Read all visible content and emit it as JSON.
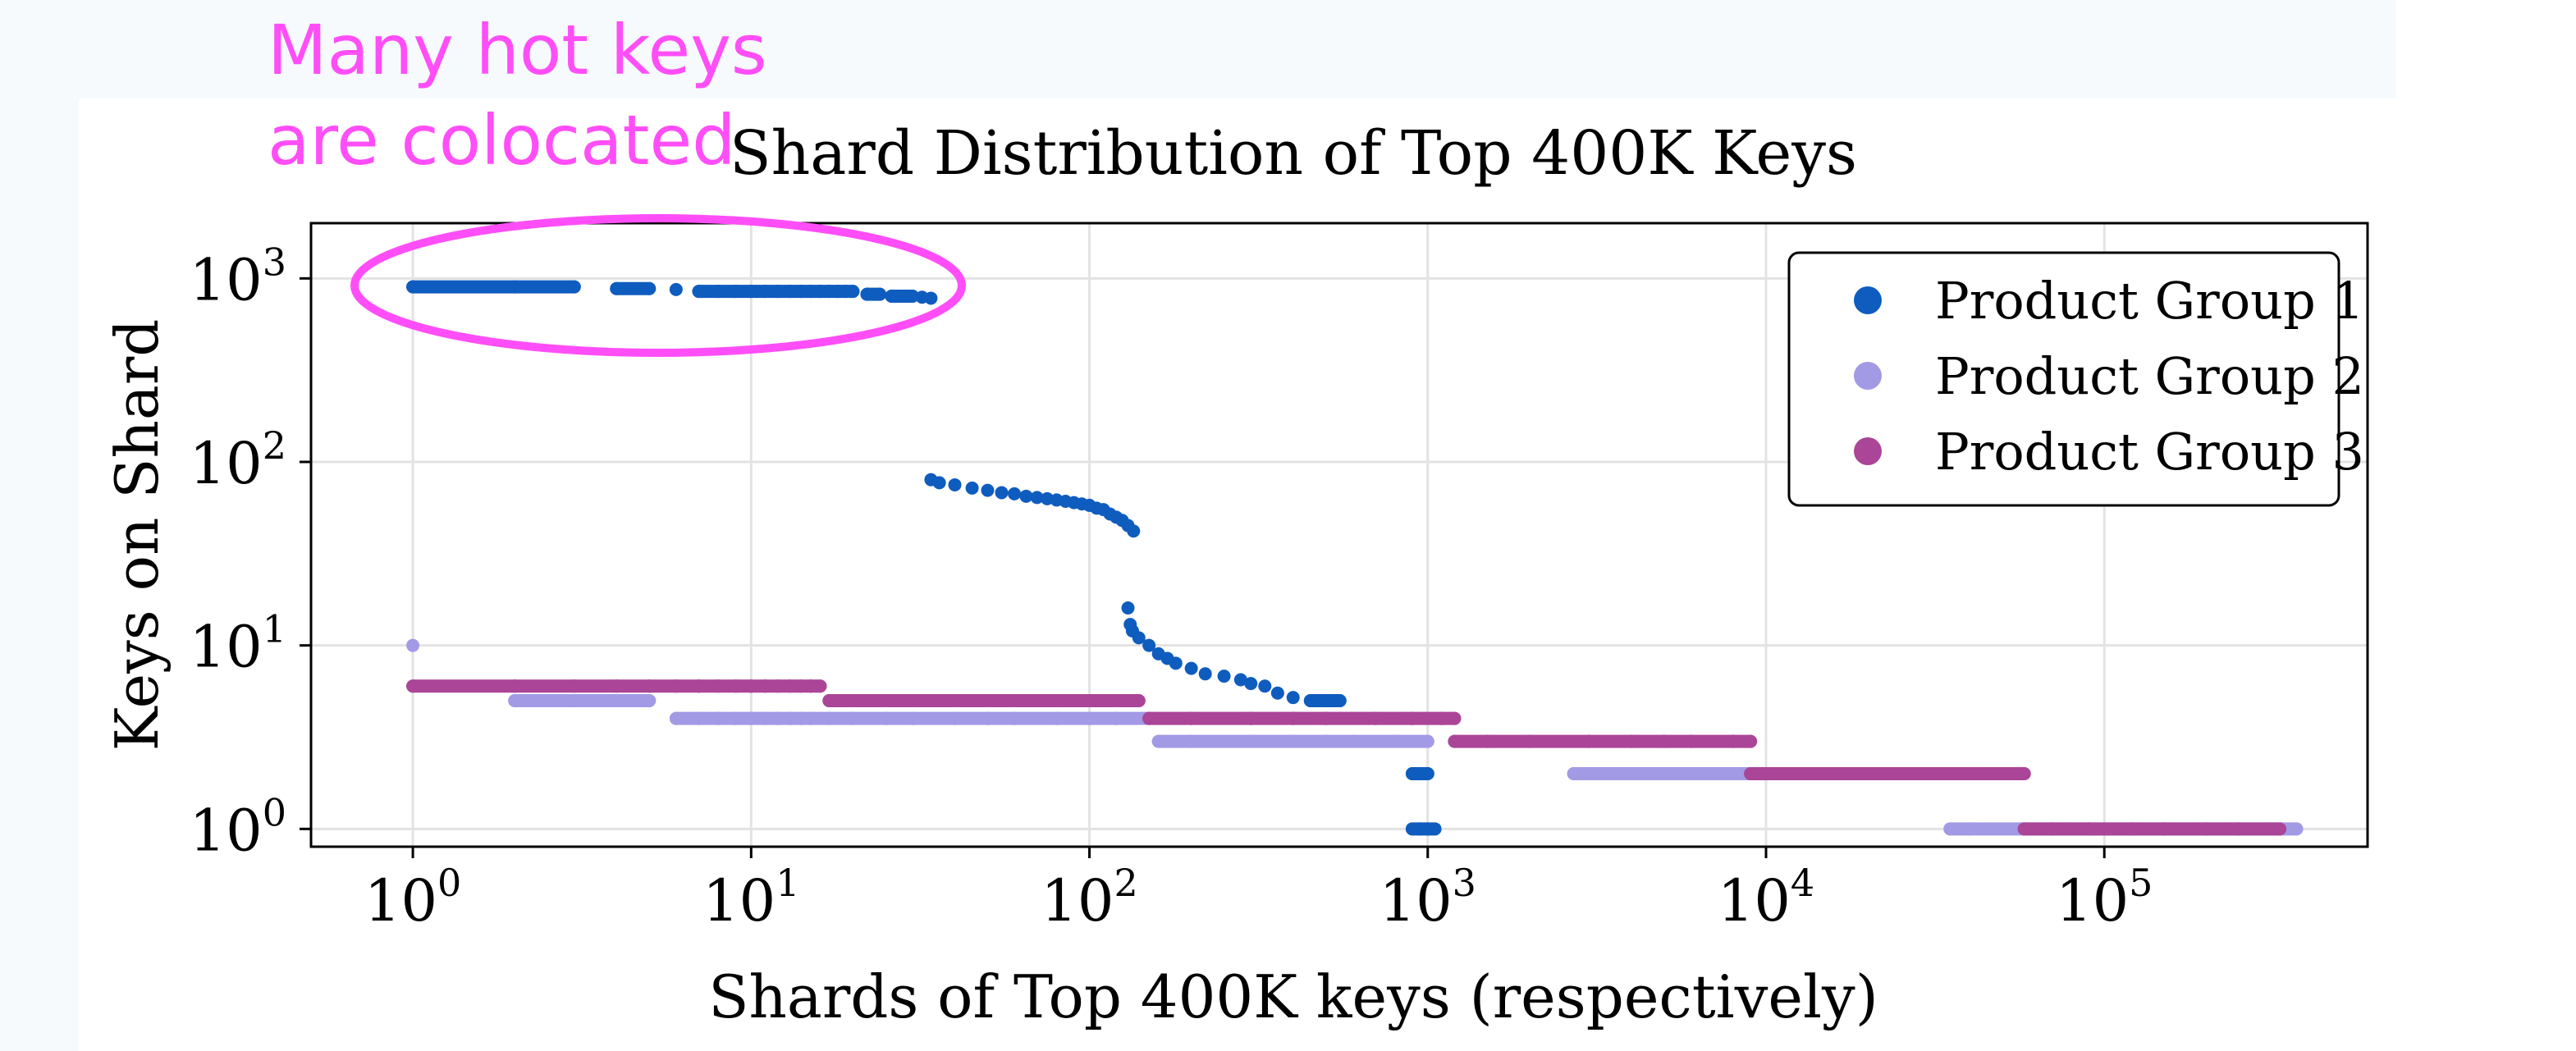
{
  "annotation": {
    "line1": "Many hot keys",
    "line2": "are colocated",
    "color": "#ff4ef7"
  },
  "chart_data": {
    "type": "scatter",
    "title": "Shard Distribution of Top 400K Keys",
    "xlabel": "Shards of Top 400K keys (respectively)",
    "ylabel": "Keys on Shard",
    "xscale": "log",
    "yscale": "log",
    "xlim": [
      0.5,
      600000
    ],
    "ylim": [
      0.8,
      2000
    ],
    "grid": true,
    "legend_position": "top-right",
    "xticks": [
      {
        "value": 1,
        "base": "10",
        "exp": "0"
      },
      {
        "value": 10,
        "base": "10",
        "exp": "1"
      },
      {
        "value": 100,
        "base": "10",
        "exp": "2"
      },
      {
        "value": 1000,
        "base": "10",
        "exp": "3"
      },
      {
        "value": 10000,
        "base": "10",
        "exp": "4"
      },
      {
        "value": 100000,
        "base": "10",
        "exp": "5"
      }
    ],
    "yticks": [
      {
        "value": 1,
        "base": "10",
        "exp": "0"
      },
      {
        "value": 10,
        "base": "10",
        "exp": "1"
      },
      {
        "value": 100,
        "base": "10",
        "exp": "2"
      },
      {
        "value": 1000,
        "base": "10",
        "exp": "3"
      }
    ],
    "series": [
      {
        "name": "Product Group 1",
        "color": "#0f5cbf",
        "points": [
          [
            1,
            900
          ],
          [
            2,
            900
          ],
          [
            3,
            900
          ],
          [
            4,
            880
          ],
          [
            5,
            880
          ],
          [
            6,
            870
          ],
          [
            7,
            850
          ],
          [
            8,
            850
          ],
          [
            9,
            850
          ],
          [
            10,
            850
          ],
          [
            11,
            850
          ],
          [
            12,
            850
          ],
          [
            13,
            850
          ],
          [
            14,
            850
          ],
          [
            15,
            850
          ],
          [
            16,
            850
          ],
          [
            17,
            850
          ],
          [
            18,
            850
          ],
          [
            19,
            850
          ],
          [
            20,
            850
          ],
          [
            22,
            820
          ],
          [
            24,
            820
          ],
          [
            26,
            800
          ],
          [
            28,
            800
          ],
          [
            30,
            800
          ],
          [
            32,
            790
          ],
          [
            34,
            780
          ],
          [
            34,
            80
          ],
          [
            36,
            77
          ],
          [
            40,
            75
          ],
          [
            45,
            72
          ],
          [
            50,
            70
          ],
          [
            55,
            68
          ],
          [
            60,
            67
          ],
          [
            65,
            65
          ],
          [
            70,
            64
          ],
          [
            75,
            63
          ],
          [
            80,
            62
          ],
          [
            85,
            61
          ],
          [
            90,
            60
          ],
          [
            95,
            59
          ],
          [
            100,
            58
          ],
          [
            105,
            56
          ],
          [
            110,
            55
          ],
          [
            115,
            52
          ],
          [
            120,
            50
          ],
          [
            125,
            48
          ],
          [
            130,
            45
          ],
          [
            135,
            42
          ],
          [
            130,
            16
          ],
          [
            132,
            13
          ],
          [
            134,
            12
          ],
          [
            140,
            11
          ],
          [
            150,
            10
          ],
          [
            160,
            9
          ],
          [
            170,
            8.5
          ],
          [
            180,
            8
          ],
          [
            200,
            7.5
          ],
          [
            220,
            7
          ],
          [
            250,
            6.8
          ],
          [
            280,
            6.5
          ],
          [
            300,
            6.2
          ],
          [
            330,
            6
          ],
          [
            360,
            5.5
          ],
          [
            400,
            5.2
          ],
          [
            450,
            5
          ],
          [
            500,
            5
          ],
          [
            550,
            5
          ],
          [
            900,
            2
          ],
          [
            950,
            2
          ],
          [
            1000,
            2
          ],
          [
            900,
            1
          ],
          [
            950,
            1
          ],
          [
            1000,
            1
          ],
          [
            1050,
            1
          ]
        ]
      },
      {
        "name": "Product Group 2",
        "color": "#a39ae6",
        "points": [
          [
            1,
            10
          ],
          [
            2,
            5
          ],
          [
            3,
            5
          ],
          [
            4,
            5
          ],
          [
            5,
            5
          ],
          [
            6,
            4
          ],
          [
            7,
            4
          ],
          [
            8,
            4
          ],
          [
            9,
            4
          ],
          [
            10,
            4
          ],
          [
            11,
            4
          ],
          [
            12,
            4
          ],
          [
            13,
            4
          ],
          [
            14,
            4
          ],
          [
            15,
            4
          ],
          [
            17,
            4
          ],
          [
            20,
            4
          ],
          [
            25,
            4
          ],
          [
            30,
            4
          ],
          [
            40,
            4
          ],
          [
            50,
            4
          ],
          [
            60,
            4
          ],
          [
            80,
            4
          ],
          [
            100,
            4
          ],
          [
            120,
            4
          ],
          [
            150,
            4
          ],
          [
            160,
            3
          ],
          [
            200,
            3
          ],
          [
            300,
            3
          ],
          [
            400,
            3
          ],
          [
            500,
            3
          ],
          [
            600,
            3
          ],
          [
            800,
            3
          ],
          [
            1000,
            3
          ],
          [
            2700,
            2
          ],
          [
            3000,
            2
          ],
          [
            4000,
            2
          ],
          [
            5000,
            2
          ],
          [
            6000,
            2
          ],
          [
            8000,
            2
          ],
          [
            10000,
            2
          ],
          [
            15000,
            2
          ],
          [
            20000,
            2
          ],
          [
            35000,
            1
          ],
          [
            40000,
            1
          ],
          [
            60000,
            1
          ],
          [
            80000,
            1
          ],
          [
            100000,
            1
          ],
          [
            150000,
            1
          ],
          [
            200000,
            1
          ],
          [
            300000,
            1
          ],
          [
            370000,
            1
          ]
        ]
      },
      {
        "name": "Product Group 3",
        "color": "#aa4597",
        "points": [
          [
            1,
            6
          ],
          [
            2,
            6
          ],
          [
            3,
            6
          ],
          [
            4,
            6
          ],
          [
            5,
            6
          ],
          [
            6,
            6
          ],
          [
            7,
            6
          ],
          [
            8,
            6
          ],
          [
            9,
            6
          ],
          [
            10,
            6
          ],
          [
            11,
            6
          ],
          [
            12,
            6
          ],
          [
            13,
            6
          ],
          [
            14,
            6
          ],
          [
            15,
            6
          ],
          [
            16,
            6
          ],
          [
            17,
            5
          ],
          [
            20,
            5
          ],
          [
            25,
            5
          ],
          [
            30,
            5
          ],
          [
            40,
            5
          ],
          [
            50,
            5
          ],
          [
            60,
            5
          ],
          [
            80,
            5
          ],
          [
            100,
            5
          ],
          [
            120,
            5
          ],
          [
            140,
            5
          ],
          [
            150,
            4
          ],
          [
            200,
            4
          ],
          [
            300,
            4
          ],
          [
            400,
            4
          ],
          [
            500,
            4
          ],
          [
            700,
            4
          ],
          [
            900,
            4
          ],
          [
            1100,
            4
          ],
          [
            1200,
            4
          ],
          [
            1200,
            3
          ],
          [
            1500,
            3
          ],
          [
            2000,
            3
          ],
          [
            3000,
            3
          ],
          [
            4000,
            3
          ],
          [
            5000,
            3
          ],
          [
            6000,
            3
          ],
          [
            8000,
            3
          ],
          [
            9000,
            3
          ],
          [
            9000,
            2
          ],
          [
            10000,
            2
          ],
          [
            15000,
            2
          ],
          [
            20000,
            2
          ],
          [
            30000,
            2
          ],
          [
            40000,
            2
          ],
          [
            50000,
            2
          ],
          [
            58000,
            2
          ],
          [
            58000,
            1
          ],
          [
            70000,
            1
          ],
          [
            90000,
            1
          ],
          [
            120000,
            1
          ],
          [
            150000,
            1
          ],
          [
            200000,
            1
          ],
          [
            250000,
            1
          ],
          [
            330000,
            1
          ]
        ]
      }
    ]
  }
}
